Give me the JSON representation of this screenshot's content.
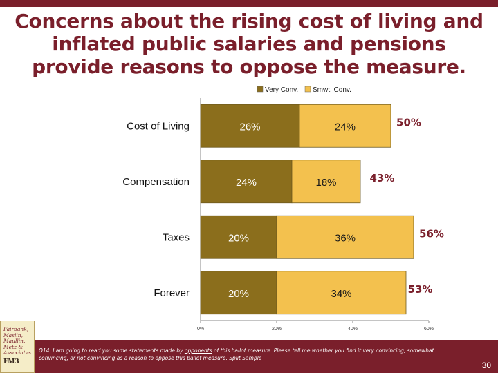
{
  "title": "Concerns about the rising cost of living and inflated public salaries and pensions provide reasons to oppose the measure.",
  "colors": {
    "very": "#8b6e1c",
    "smwt": "#f3c14e",
    "accent": "#7a1f2b",
    "bar_border": "#6e5a20"
  },
  "chart_data": {
    "type": "bar",
    "orientation": "horizontal",
    "stacked": true,
    "categories": [
      "Cost of Living",
      "Compensation",
      "Taxes",
      "Forever"
    ],
    "series": [
      {
        "name": "Very Conv.",
        "values": [
          26,
          24,
          20,
          20
        ],
        "labels": [
          "26%",
          "24%",
          "20%",
          "20%"
        ]
      },
      {
        "name": "Smwt. Conv.",
        "values": [
          24,
          18,
          36,
          34
        ],
        "labels": [
          "24%",
          "18%",
          "36%",
          "34%"
        ]
      }
    ],
    "totals": [
      50,
      43,
      56,
      53
    ],
    "total_labels": [
      "50%",
      "43%",
      "56%",
      "53%"
    ],
    "xlim": [
      0,
      60
    ],
    "xticks": [
      0,
      20,
      40,
      60
    ],
    "xtick_labels": [
      "0%",
      "20%",
      "40%",
      "60%"
    ],
    "legend": [
      "Very Conv.",
      "Smwt. Conv."
    ]
  },
  "footnote": {
    "prefix": "Q14. I am going to read you some statements made by ",
    "u1": "opponents",
    "mid": " of this ballot measure. Please tell me whether you find it very convincing, somewhat convincing, or not convincing as a reason to ",
    "u2": "oppose",
    "suffix": " this ballot measure. Split Sample"
  },
  "page_number": "30",
  "logo_lines": [
    "Fairbank,",
    "Maslin,",
    "Maullin,",
    "Metz &",
    "Associates"
  ],
  "logo_brand": "FM3"
}
